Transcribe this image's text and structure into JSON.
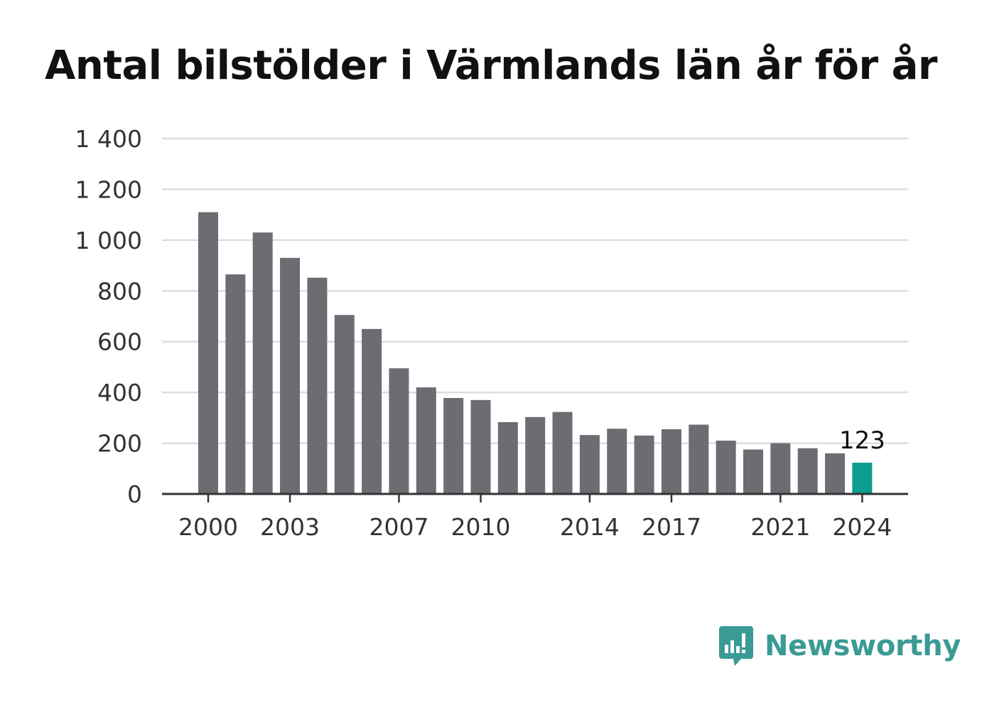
{
  "chart_data": {
    "type": "bar",
    "title": "Antal bilstölder i Värmlands län år för år",
    "xlabel": "",
    "ylabel": "",
    "ylim": [
      0,
      1400
    ],
    "yticks": [
      0,
      200,
      400,
      600,
      800,
      1000,
      1200,
      1400
    ],
    "ytick_labels": [
      "0",
      "200",
      "400",
      "600",
      "800",
      "1 000",
      "1 200",
      "1 400"
    ],
    "xtick_labels": [
      "2000",
      "2003",
      "2007",
      "2010",
      "2014",
      "2017",
      "2021",
      "2024"
    ],
    "categories": [
      "2000",
      "2001",
      "2002",
      "2003",
      "2004",
      "2005",
      "2006",
      "2007",
      "2008",
      "2009",
      "2010",
      "2011",
      "2012",
      "2013",
      "2014",
      "2015",
      "2016",
      "2017",
      "2018",
      "2019",
      "2020",
      "2021",
      "2022",
      "2023",
      "2024"
    ],
    "values": [
      1110,
      865,
      1030,
      930,
      852,
      705,
      650,
      495,
      420,
      378,
      370,
      283,
      303,
      323,
      232,
      257,
      230,
      255,
      273,
      210,
      175,
      200,
      180,
      160,
      123
    ],
    "highlight_category": "2024",
    "highlight_label": "123",
    "grid": true,
    "legend": "none",
    "colors": {
      "bar": "#6d6c72",
      "highlight": "#0a9e8e",
      "grid": "#dddddd",
      "axis": "#333333"
    }
  },
  "brand": {
    "name": "Newsworthy",
    "icon": "newsworthy-logo-icon",
    "color": "#3a9a94"
  }
}
